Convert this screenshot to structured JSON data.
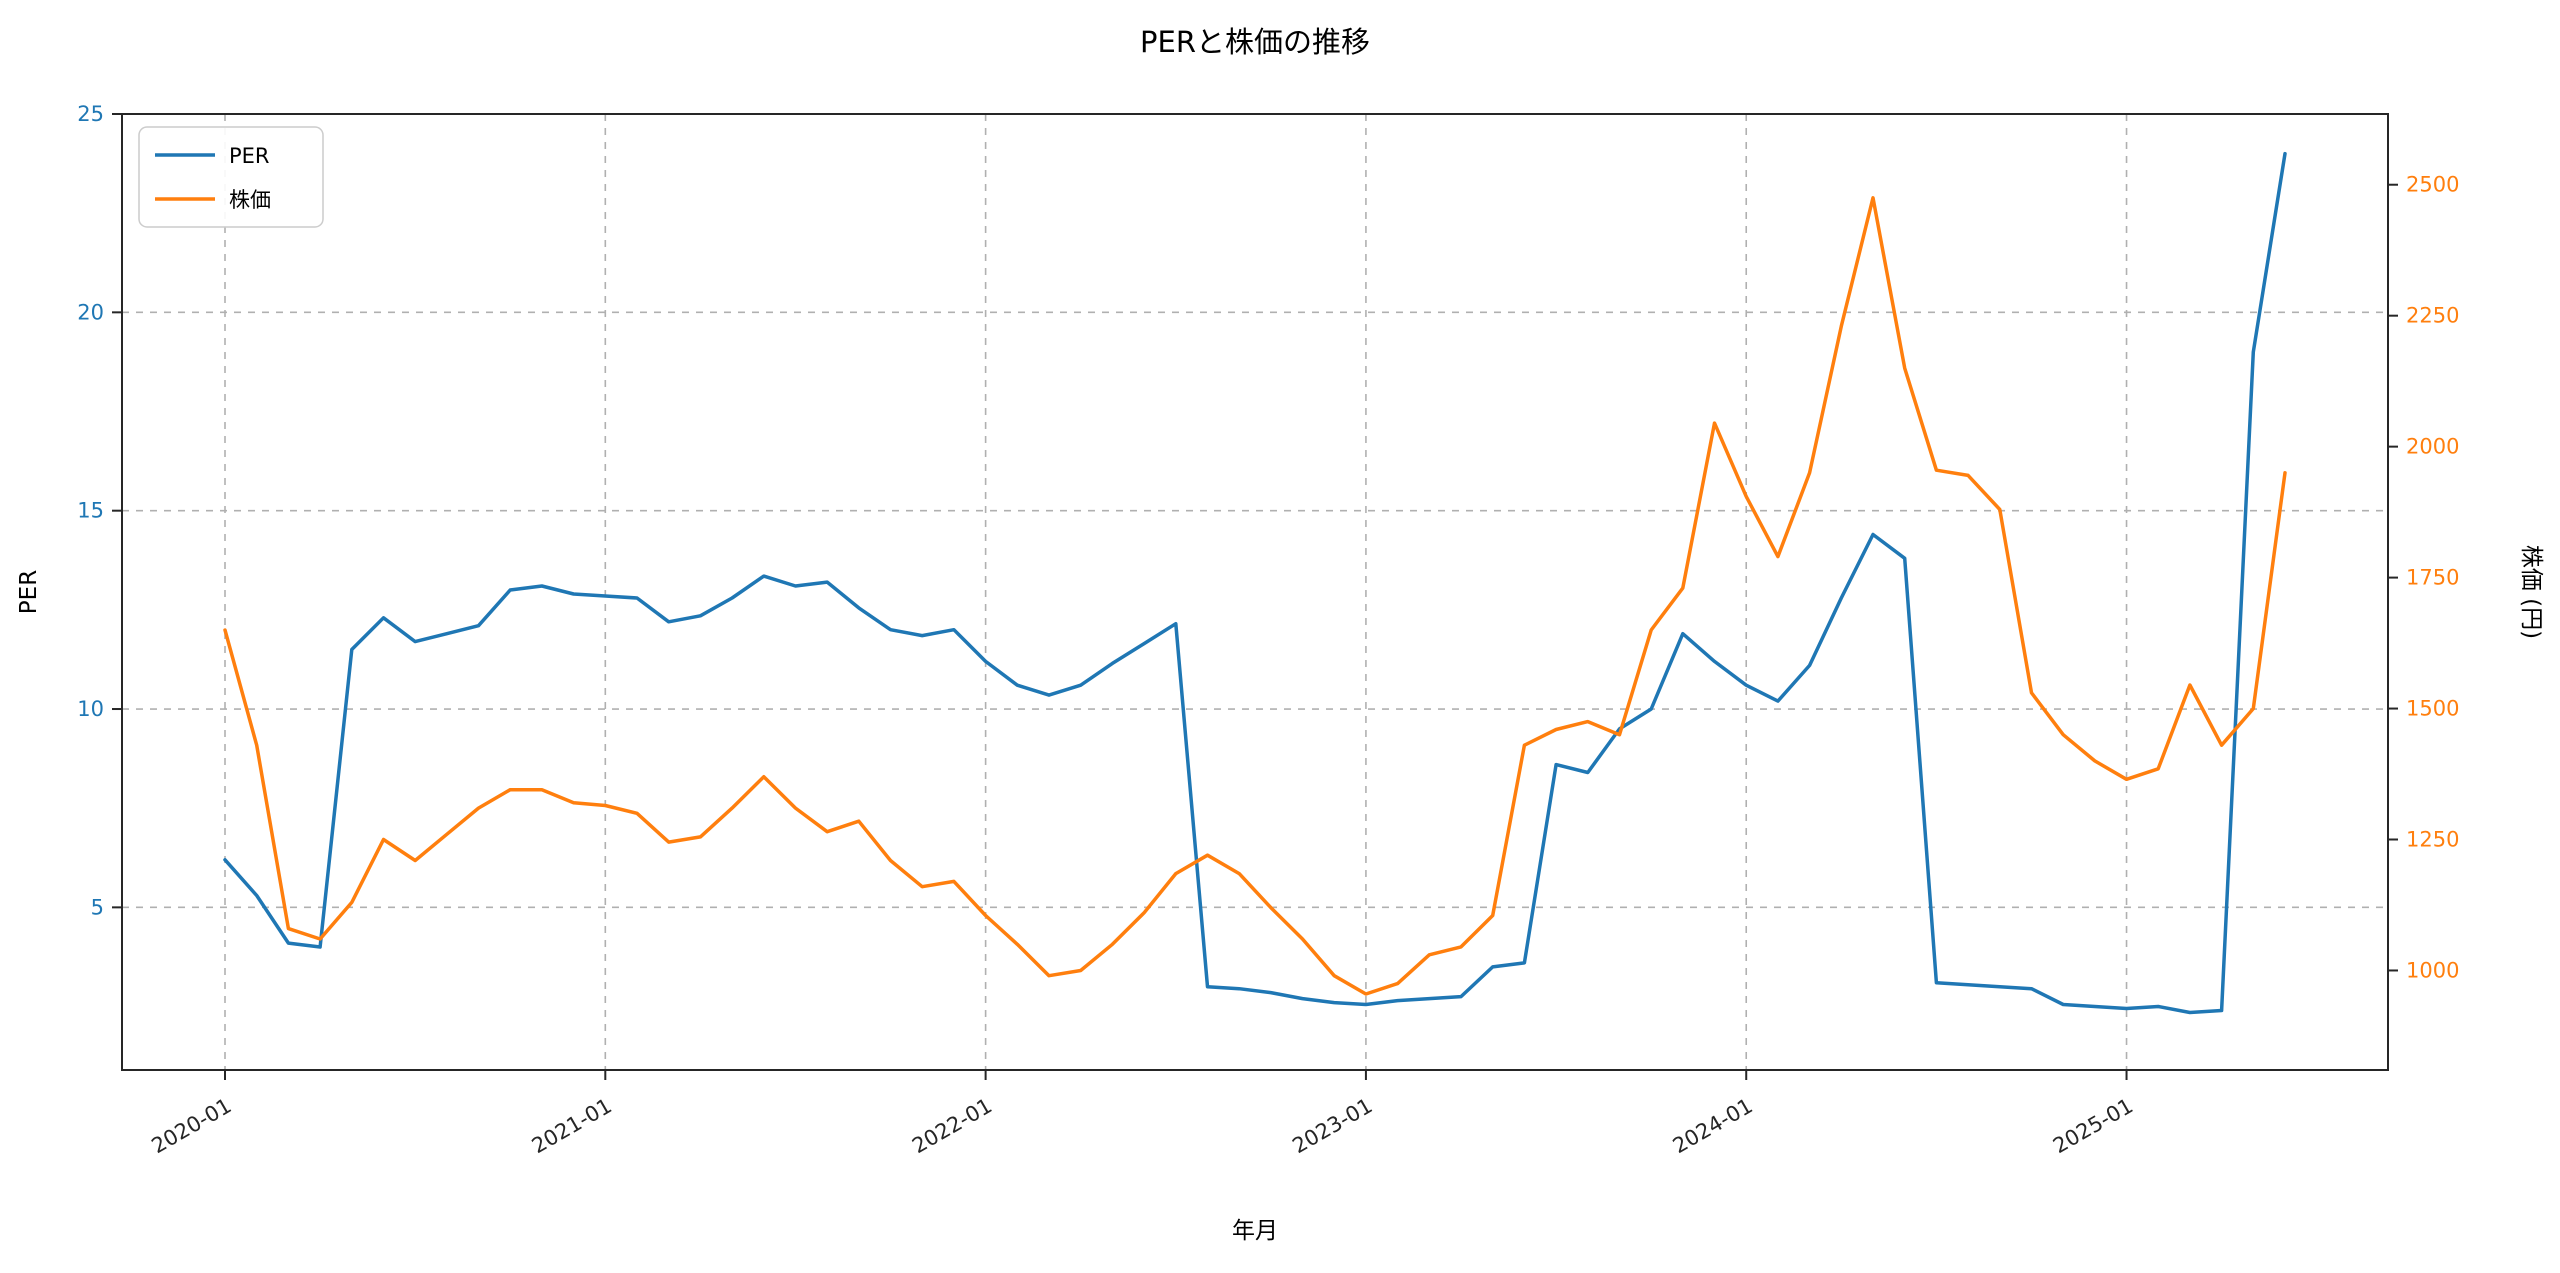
{
  "window": {
    "background": "#ffffff"
  },
  "chart_data": {
    "type": "line",
    "title": "PERと株価の推移",
    "xlabel": "年月",
    "ylabel_left": "PER",
    "ylabel_right": "株価 (円)",
    "grid": true,
    "grid_style": "dashed",
    "legend_position": "upper left",
    "x": [
      "2020-01",
      "2020-02",
      "2020-03",
      "2020-04",
      "2020-05",
      "2020-06",
      "2020-07",
      "2020-08",
      "2020-09",
      "2020-10",
      "2020-11",
      "2020-12",
      "2021-01",
      "2021-02",
      "2021-03",
      "2021-04",
      "2021-05",
      "2021-06",
      "2021-07",
      "2021-08",
      "2021-09",
      "2021-10",
      "2021-11",
      "2021-12",
      "2022-01",
      "2022-02",
      "2022-03",
      "2022-04",
      "2022-05",
      "2022-06",
      "2022-07",
      "2022-08",
      "2022-09",
      "2022-10",
      "2022-11",
      "2022-12",
      "2023-01",
      "2023-02",
      "2023-03",
      "2023-04",
      "2023-05",
      "2023-06",
      "2023-07",
      "2023-08",
      "2023-09",
      "2023-10",
      "2023-11",
      "2023-12",
      "2024-01",
      "2024-02",
      "2024-03",
      "2024-04",
      "2024-05",
      "2024-06",
      "2024-07",
      "2024-08",
      "2024-09",
      "2024-10",
      "2024-11",
      "2024-12",
      "2025-01",
      "2025-02",
      "2025-03",
      "2025-04",
      "2025-05",
      "2025-06"
    ],
    "series": [
      {
        "name": "PER",
        "axis": "left",
        "color": "#1f77b4",
        "values": [
          6.2,
          5.3,
          4.1,
          4.0,
          11.5,
          12.3,
          11.7,
          11.9,
          12.1,
          13.0,
          13.1,
          12.9,
          12.85,
          12.8,
          12.2,
          12.35,
          12.8,
          13.35,
          13.1,
          13.2,
          12.55,
          12.0,
          11.85,
          12.0,
          11.2,
          10.6,
          10.35,
          10.6,
          11.15,
          11.65,
          12.15,
          3.0,
          2.95,
          2.85,
          2.7,
          2.6,
          2.55,
          2.65,
          2.7,
          2.75,
          3.5,
          3.6,
          8.6,
          8.4,
          9.5,
          10.0,
          11.9,
          11.2,
          10.6,
          10.2,
          11.1,
          12.8,
          14.4,
          13.8,
          3.1,
          3.05,
          3.0,
          2.95,
          2.55,
          2.5,
          2.45,
          2.5,
          2.35,
          2.4,
          19.0,
          24.0
        ]
      },
      {
        "name": "株価",
        "axis": "right",
        "color": "#ff7f0e",
        "values": [
          1650,
          1430,
          1080,
          1060,
          1130,
          1250,
          1210,
          1260,
          1310,
          1345,
          1345,
          1320,
          1315,
          1300,
          1245,
          1255,
          1310,
          1370,
          1310,
          1265,
          1285,
          1210,
          1160,
          1170,
          1105,
          1050,
          990,
          1000,
          1050,
          1110,
          1185,
          1220,
          1185,
          1120,
          1060,
          990,
          955,
          975,
          1030,
          1045,
          1105,
          1430,
          1460,
          1475,
          1450,
          1650,
          1730,
          2045,
          1905,
          1790,
          1950,
          2230,
          2475,
          2150,
          1955,
          1945,
          1880,
          1530,
          1450,
          1400,
          1365,
          1385,
          1545,
          1430,
          1500,
          1950
        ]
      }
    ],
    "y_left": {
      "ticks": [
        5,
        10,
        15,
        20,
        25
      ],
      "tick_labels": [
        "5",
        "10",
        "15",
        "20",
        "25"
      ],
      "lim": [
        0.9,
        25.0
      ],
      "color": "#1f77b4"
    },
    "y_right": {
      "ticks": [
        1000,
        1250,
        1500,
        1750,
        2000,
        2250,
        2500
      ],
      "tick_labels": [
        "1000",
        "1250",
        "1500",
        "1750",
        "2000",
        "2250",
        "2500"
      ],
      "lim": [
        810,
        2635
      ],
      "color": "#ff7f0e"
    },
    "x_ticks": {
      "indices": [
        0,
        12,
        24,
        36,
        48,
        60
      ],
      "labels": [
        "2020-01",
        "2021-01",
        "2022-01",
        "2023-01",
        "2024-01",
        "2025-01"
      ],
      "rotation": -30,
      "color": "#262626"
    }
  },
  "legend": {
    "items": [
      {
        "label": "PER",
        "color": "#1f77b4"
      },
      {
        "label": "株価",
        "color": "#ff7f0e"
      }
    ]
  },
  "style": {
    "grid_color": "#b0b0b0",
    "spine_color": "#262626",
    "line_width": 3.5
  }
}
